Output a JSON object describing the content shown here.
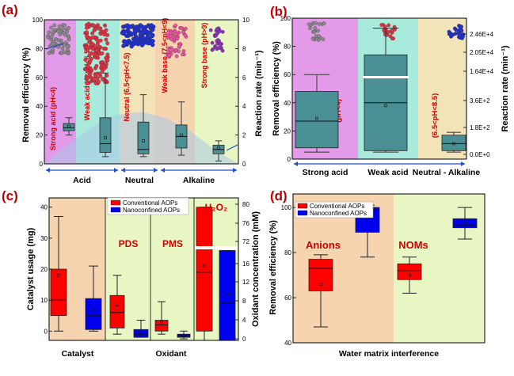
{
  "chart_data": [
    {
      "panel": "(a)",
      "type": "box",
      "ylabel": "Removal efficiency (%)",
      "y2label": "Reaction rate (min⁻¹)",
      "ylim": [
        0,
        100
      ],
      "y2lim": [
        0,
        10
      ],
      "yticks": [
        0,
        20,
        40,
        60,
        80,
        100
      ],
      "y2ticks": [
        0,
        2,
        4,
        6,
        8,
        10
      ],
      "groups": [
        "Acid",
        "Neutral",
        "Alkaline"
      ],
      "regions": [
        {
          "label": "Strong acid (pH<4)",
          "color": "#e39ae8"
        },
        {
          "label": "Weak acid (4<pH<6.5)",
          "color": "#a8eadc"
        },
        {
          "label": "Neutral (6.5<pH<7.5)",
          "color": "#f3e3b8"
        },
        {
          "label": "Weak base (7.5<pH<9)",
          "color": "#f6d4b0"
        },
        {
          "label": "Strong base (pH>9)",
          "color": "#e8f6c4"
        }
      ],
      "series": [
        {
          "name": "Removal efficiency",
          "boxes": [
            {
              "min": 20,
              "q1": 23,
              "median": 25,
              "q3": 28,
              "max": 32,
              "mean": 26
            },
            {
              "min": 5,
              "q1": 8,
              "median": 14,
              "q3": 32,
              "max": 63,
              "mean": 18
            },
            {
              "min": 5,
              "q1": 7,
              "median": 10,
              "q3": 29,
              "max": 48,
              "mean": 16
            },
            {
              "min": 6,
              "q1": 11,
              "median": 19,
              "q3": 27,
              "max": 43,
              "mean": 20
            }
          ]
        },
        {
          "name": "Reaction rate",
          "boxes": [
            {
              "min": 0.2,
              "q1": 0.7,
              "median": 1.0,
              "q3": 1.3,
              "max": 1.6,
              "mean": 1.1
            }
          ]
        }
      ],
      "curve": {
        "x": [
          0,
          1,
          2,
          3,
          4,
          5,
          6,
          7,
          8
        ],
        "y": [
          0,
          1.4,
          2.6,
          3.4,
          3.6,
          3.2,
          2.3,
          1.0,
          0
        ]
      },
      "curve_color": "#aac6e8"
    },
    {
      "panel": "(b)",
      "type": "box",
      "ylabel": "Removal efficiency (%)",
      "y2label": "Reaction rate (min⁻¹)",
      "categories": [
        "Strong acid",
        "Weak acid",
        "Neutral - Alkaline"
      ],
      "regions": [
        {
          "label": "(pH<4)",
          "color": "#e39ae8"
        },
        {
          "label": "(4<pH<6.5)",
          "color": "#a8eadc"
        },
        {
          "label": "(6.5<pH<8.5)",
          "color": "#f3e3b8"
        }
      ],
      "ylim": [
        0,
        100
      ],
      "yticks": [
        0,
        20,
        40,
        60,
        80,
        100
      ],
      "y2ticks": [
        "0.0E+0",
        "1.8E+2",
        "3.6E+2",
        "1.64E+4",
        "2.05E+4",
        "2.46E+4"
      ],
      "series": [
        {
          "name": "Removal efficiency",
          "boxes": [
            {
              "min": 5,
              "q1": 8,
              "median": 27,
              "q3": 48,
              "max": 60,
              "mean": 29
            },
            {
              "min": 5,
              "q1": 6,
              "median": 40,
              "q3": 74,
              "max": 93,
              "mean": 38
            }
          ]
        },
        {
          "name": "Reaction rate",
          "boxes": [
            {
              "min": 5,
              "q1": 6,
              "median": 11,
              "q3": 17,
              "max": 19,
              "mean": 11
            }
          ]
        }
      ]
    },
    {
      "panel": "(c)",
      "type": "box",
      "ylabel": "Catalyst usage (mg)",
      "y2label": "Oxidant concentration (mM)",
      "ylim": [
        -3,
        43
      ],
      "yticks": [
        0,
        10,
        20,
        30,
        40
      ],
      "y2ticks": [
        0,
        4,
        8,
        12,
        16,
        72,
        76,
        80
      ],
      "groups": [
        "Catalyst",
        "Oxidant"
      ],
      "annotations": [
        "PDS",
        "PMS",
        "H₂O₂"
      ],
      "series": [
        {
          "name": "Conventional AOPs",
          "color": "#ff0000",
          "boxes": [
            {
              "min": 0,
              "q1": 5,
              "median": 10,
              "q3": 20,
              "max": 37,
              "mean": 18
            },
            {
              "min": -1,
              "q1": 1,
              "median": 6,
              "q3": 11.5,
              "max": 18,
              "mean": 8.5
            },
            {
              "min": -1,
              "q1": 0,
              "median": 2,
              "q3": 3.5,
              "max": 9.5,
              "mean": 3
            },
            {
              "min": -3,
              "q1": 0,
              "median": 19,
              "q3": 40,
              "max": 40,
              "mean": 21
            }
          ]
        },
        {
          "name": "Nanoconfined AOPs",
          "color": "#0000ee",
          "boxes": [
            {
              "min": 0,
              "q1": 0.5,
              "median": 5,
              "q3": 10.5,
              "max": 21,
              "mean": 7
            },
            {
              "min": -2,
              "q1": -2,
              "median": -1,
              "q3": 0.5,
              "max": 3.5,
              "mean": -1
            },
            {
              "min": -2.5,
              "q1": -2,
              "median": -1.5,
              "q3": -1,
              "max": 0,
              "mean": -1.5
            },
            {
              "min": -3,
              "q1": -3,
              "median": 9,
              "q3": 26,
              "max": 26,
              "mean": 12
            }
          ]
        }
      ]
    },
    {
      "panel": "(d)",
      "type": "box",
      "ylabel": "Removal efficiency (%)",
      "xlabel": "Water matrix interference",
      "ylim": [
        40,
        106
      ],
      "yticks": [
        40,
        60,
        80,
        100
      ],
      "annotations": [
        "Anions",
        "NOMs"
      ],
      "series": [
        {
          "name": "Conventional AOPs",
          "color": "#ff0000",
          "boxes": [
            {
              "min": 47,
              "q1": 63,
              "median": 73,
              "q3": 77,
              "max": 79,
              "mean": 66
            },
            {
              "min": 62,
              "q1": 68,
              "median": 72,
              "q3": 75,
              "max": 78,
              "mean": 70
            }
          ]
        },
        {
          "name": "Nanoconfined AOPs",
          "color": "#0000ee",
          "boxes": [
            {
              "min": 78,
              "q1": 89,
              "median": 99,
              "q3": 100,
              "max": 101,
              "mean": 95
            },
            {
              "min": 86,
              "q1": 91,
              "median": 92,
              "q3": 95,
              "max": 100,
              "mean": 93
            }
          ]
        }
      ]
    }
  ]
}
